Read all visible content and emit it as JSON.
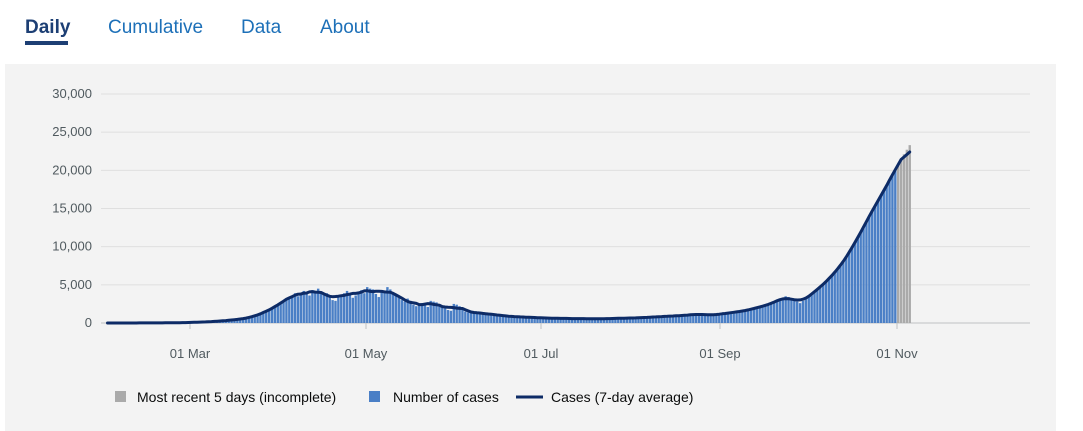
{
  "tabs": [
    {
      "label": "Daily",
      "active": true
    },
    {
      "label": "Cumulative",
      "active": false
    },
    {
      "label": "Data",
      "active": false
    },
    {
      "label": "About",
      "active": false
    }
  ],
  "colors": {
    "accent": "#1d3f74",
    "tab_link": "#1d70b8",
    "bar_complete": "#4a7fc6",
    "bar_incomplete": "#aaaaaa",
    "line": "#0d2b66",
    "grid": "#dfdfdf"
  },
  "legend": [
    {
      "label": "Most recent 5 days (incomplete)",
      "swatch": "grey-square"
    },
    {
      "label": "Number of cases",
      "swatch": "blue-square"
    },
    {
      "label": "Cases (7-day average)",
      "swatch": "navy-line"
    }
  ],
  "chart_data": {
    "type": "bar",
    "title": "",
    "xlabel": "",
    "ylabel": "",
    "ylim": [
      0,
      30000
    ],
    "y_ticks": [
      "30,000",
      "25,000",
      "20,000",
      "15,000",
      "10,000",
      "5,000",
      "0"
    ],
    "x_ticks": [
      "01 Mar",
      "01 May",
      "01 Jul",
      "01 Sep",
      "01 Nov"
    ],
    "grid": true,
    "legend_placement": "bottom",
    "series": [
      {
        "name": "Number of cases",
        "type": "bar",
        "values": [
          [
            -29,
            2
          ],
          [
            -28,
            2
          ],
          [
            -27,
            3
          ],
          [
            -26,
            3
          ],
          [
            -25,
            3
          ],
          [
            -24,
            3
          ],
          [
            -23,
            4
          ],
          [
            -22,
            4
          ],
          [
            -21,
            5
          ],
          [
            -20,
            5
          ],
          [
            -19,
            6
          ],
          [
            -18,
            6
          ],
          [
            -17,
            7
          ],
          [
            -16,
            8
          ],
          [
            -15,
            9
          ],
          [
            -14,
            10
          ],
          [
            -13,
            11
          ],
          [
            -12,
            13
          ],
          [
            -11,
            15
          ],
          [
            -10,
            17
          ],
          [
            -9,
            20
          ],
          [
            -8,
            23
          ],
          [
            -7,
            27
          ],
          [
            -6,
            31
          ],
          [
            -5,
            36
          ],
          [
            -4,
            42
          ],
          [
            -3,
            49
          ],
          [
            -2,
            56
          ],
          [
            -1,
            65
          ],
          [
            0,
            75
          ],
          [
            1,
            86
          ],
          [
            2,
            100
          ],
          [
            3,
            115
          ],
          [
            4,
            133
          ],
          [
            5,
            150
          ],
          [
            6,
            165
          ],
          [
            7,
            185
          ],
          [
            8,
            205
          ],
          [
            9,
            220
          ],
          [
            10,
            250
          ],
          [
            11,
            280
          ],
          [
            12,
            320
          ],
          [
            13,
            360
          ],
          [
            14,
            390
          ],
          [
            15,
            420
          ],
          [
            16,
            460
          ],
          [
            17,
            510
          ],
          [
            18,
            560
          ],
          [
            19,
            620
          ],
          [
            20,
            690
          ],
          [
            21,
            780
          ],
          [
            22,
            900
          ],
          [
            23,
            1050
          ],
          [
            24,
            1200
          ],
          [
            25,
            1350
          ],
          [
            26,
            1500
          ],
          [
            27,
            1700
          ],
          [
            28,
            1900
          ],
          [
            29,
            2100
          ],
          [
            30,
            2300
          ],
          [
            31,
            2600
          ],
          [
            32,
            2900
          ],
          [
            33,
            3100
          ],
          [
            34,
            3400
          ],
          [
            35,
            3600
          ],
          [
            36,
            3900
          ],
          [
            37,
            3500
          ],
          [
            38,
            3800
          ],
          [
            39,
            4200
          ],
          [
            40,
            4000
          ],
          [
            41,
            3600
          ],
          [
            42,
            4300
          ],
          [
            43,
            4100
          ],
          [
            44,
            4500
          ],
          [
            45,
            4100
          ],
          [
            46,
            3700
          ],
          [
            47,
            3900
          ],
          [
            48,
            3400
          ],
          [
            49,
            3000
          ],
          [
            50,
            2900
          ],
          [
            51,
            3500
          ],
          [
            52,
            3700
          ],
          [
            53,
            3900
          ],
          [
            54,
            4200
          ],
          [
            55,
            3800
          ],
          [
            56,
            3300
          ],
          [
            57,
            3600
          ],
          [
            58,
            4000
          ],
          [
            59,
            4300
          ],
          [
            60,
            3900
          ],
          [
            61,
            4700
          ],
          [
            62,
            4500
          ],
          [
            63,
            4400
          ],
          [
            64,
            3800
          ],
          [
            65,
            3400
          ],
          [
            66,
            4100
          ],
          [
            67,
            4200
          ],
          [
            68,
            4700
          ],
          [
            69,
            4400
          ],
          [
            70,
            3900
          ],
          [
            71,
            3600
          ],
          [
            72,
            3300
          ],
          [
            73,
            3000
          ],
          [
            74,
            2800
          ],
          [
            75,
            3200
          ],
          [
            76,
            2900
          ],
          [
            77,
            2400
          ],
          [
            78,
            2200
          ],
          [
            79,
            2400
          ],
          [
            80,
            2600
          ],
          [
            81,
            2300
          ],
          [
            82,
            2100
          ],
          [
            83,
            2900
          ],
          [
            84,
            2800
          ],
          [
            85,
            2700
          ],
          [
            86,
            2300
          ],
          [
            87,
            2000
          ],
          [
            88,
            1900
          ],
          [
            89,
            1700
          ],
          [
            90,
            1600
          ],
          [
            91,
            2500
          ],
          [
            92,
            2400
          ],
          [
            93,
            2200
          ],
          [
            94,
            1800
          ],
          [
            95,
            1500
          ],
          [
            96,
            1400
          ],
          [
            97,
            1500
          ],
          [
            98,
            1400
          ],
          [
            99,
            1300
          ],
          [
            100,
            1200
          ],
          [
            101,
            1300
          ],
          [
            102,
            1250
          ],
          [
            103,
            1200
          ],
          [
            104,
            1150
          ],
          [
            105,
            1100
          ],
          [
            106,
            1050
          ],
          [
            107,
            1000
          ],
          [
            108,
            950
          ],
          [
            109,
            900
          ],
          [
            110,
            900
          ],
          [
            111,
            850
          ],
          [
            112,
            850
          ],
          [
            113,
            800
          ],
          [
            114,
            800
          ],
          [
            115,
            800
          ],
          [
            116,
            750
          ],
          [
            117,
            750
          ],
          [
            118,
            750
          ],
          [
            119,
            700
          ],
          [
            120,
            700
          ],
          [
            121,
            700
          ],
          [
            122,
            650
          ],
          [
            123,
            650
          ],
          [
            124,
            650
          ],
          [
            125,
            650
          ],
          [
            126,
            600
          ],
          [
            127,
            620
          ],
          [
            128,
            610
          ],
          [
            129,
            600
          ],
          [
            130,
            580
          ],
          [
            131,
            590
          ],
          [
            132,
            600
          ],
          [
            133,
            580
          ],
          [
            134,
            570
          ],
          [
            135,
            560
          ],
          [
            136,
            570
          ],
          [
            137,
            580
          ],
          [
            138,
            570
          ],
          [
            139,
            560
          ],
          [
            140,
            550
          ],
          [
            141,
            560
          ],
          [
            142,
            570
          ],
          [
            143,
            560
          ],
          [
            144,
            570
          ],
          [
            145,
            580
          ],
          [
            146,
            590
          ],
          [
            147,
            600
          ],
          [
            148,
            610
          ],
          [
            149,
            620
          ],
          [
            150,
            630
          ],
          [
            151,
            640
          ],
          [
            152,
            650
          ],
          [
            153,
            660
          ],
          [
            154,
            670
          ],
          [
            155,
            680
          ],
          [
            156,
            700
          ],
          [
            157,
            720
          ],
          [
            158,
            740
          ],
          [
            159,
            760
          ],
          [
            160,
            780
          ],
          [
            161,
            800
          ],
          [
            162,
            820
          ],
          [
            163,
            840
          ],
          [
            164,
            860
          ],
          [
            165,
            880
          ],
          [
            166,
            900
          ],
          [
            167,
            920
          ],
          [
            168,
            940
          ],
          [
            169,
            960
          ],
          [
            170,
            980
          ],
          [
            171,
            1000
          ],
          [
            172,
            1020
          ],
          [
            173,
            1050
          ],
          [
            174,
            1100
          ],
          [
            175,
            1150
          ],
          [
            176,
            1200
          ],
          [
            177,
            1150
          ],
          [
            178,
            1100
          ],
          [
            179,
            1050
          ],
          [
            180,
            1000
          ],
          [
            181,
            1050
          ],
          [
            182,
            1100
          ],
          [
            183,
            1150
          ],
          [
            184,
            1200
          ],
          [
            185,
            1250
          ],
          [
            186,
            1300
          ],
          [
            187,
            1350
          ],
          [
            188,
            1400
          ],
          [
            189,
            1450
          ],
          [
            190,
            1500
          ],
          [
            191,
            1550
          ],
          [
            192,
            1600
          ],
          [
            193,
            1700
          ],
          [
            194,
            1800
          ],
          [
            195,
            1900
          ],
          [
            196,
            2000
          ],
          [
            197,
            2100
          ],
          [
            198,
            2200
          ],
          [
            199,
            2300
          ],
          [
            200,
            2400
          ],
          [
            201,
            2500
          ],
          [
            202,
            2700
          ],
          [
            203,
            2900
          ],
          [
            204,
            3100
          ],
          [
            205,
            3300
          ],
          [
            206,
            3500
          ],
          [
            207,
            3400
          ],
          [
            208,
            3200
          ],
          [
            209,
            3000
          ],
          [
            210,
            2800
          ],
          [
            211,
            2600
          ],
          [
            212,
            2900
          ],
          [
            213,
            3200
          ],
          [
            214,
            3500
          ],
          [
            215,
            3800
          ],
          [
            216,
            4100
          ],
          [
            217,
            4400
          ],
          [
            218,
            4700
          ],
          [
            219,
            5000
          ],
          [
            220,
            5400
          ],
          [
            221,
            5800
          ],
          [
            222,
            6200
          ],
          [
            223,
            6600
          ],
          [
            224,
            7000
          ],
          [
            225,
            7500
          ],
          [
            226,
            8000
          ],
          [
            227,
            8600
          ],
          [
            228,
            9200
          ],
          [
            229,
            9800
          ],
          [
            230,
            10500
          ],
          [
            231,
            11200
          ],
          [
            232,
            11900
          ],
          [
            233,
            12600
          ],
          [
            234,
            13300
          ],
          [
            235,
            14000
          ],
          [
            236,
            14700
          ],
          [
            237,
            15400
          ],
          [
            238,
            16000
          ],
          [
            239,
            16700
          ],
          [
            240,
            17300
          ],
          [
            241,
            18000
          ],
          [
            242,
            18700
          ],
          [
            243,
            19400
          ],
          [
            244,
            20100
          ],
          [
            245,
            20800
          ],
          [
            246,
            21500
          ],
          [
            247,
            22100
          ],
          [
            248,
            22700
          ],
          [
            249,
            23300
          ]
        ],
        "note": "Values are daily case counts, listed as [day index, count]; day 0 corresponds to 01 Mar."
      }
    ]
  }
}
